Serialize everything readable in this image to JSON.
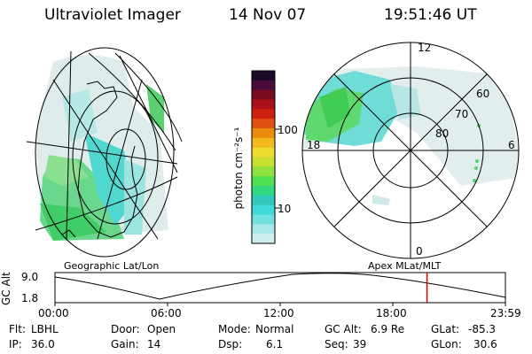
{
  "header": {
    "instrument": "Ultraviolet Imager",
    "date": "14 Nov 07",
    "time": "19:51:46 UT"
  },
  "left_map": {
    "caption": "Geographic Lat/Lon"
  },
  "right_map": {
    "caption": "Apex MLat/MLT",
    "mlt_labels": {
      "top": "12",
      "left": "18",
      "right": "6",
      "bottom": "0"
    },
    "lat_labels": [
      "60",
      "70",
      "80"
    ]
  },
  "colorbar": {
    "label": "photon cm⁻²s⁻¹",
    "ticks": [
      "100",
      "10"
    ],
    "colors": [
      "#1a0a2a",
      "#4a0a3a",
      "#7a0a1e",
      "#a8101a",
      "#cc2010",
      "#e05010",
      "#ec8a10",
      "#f2b820",
      "#ecdc30",
      "#c8e030",
      "#90e040",
      "#50e050",
      "#30d880",
      "#30c8b8",
      "#40d8d8",
      "#70e0e0",
      "#a8e8e8",
      "#d0eeee"
    ]
  },
  "timeline": {
    "y_label": "GC Alt",
    "y_ticks": [
      "9.0",
      "1.8"
    ],
    "x_ticks": [
      "00:00",
      "06:00",
      "12:00",
      "18:00",
      "23:59"
    ],
    "current_fraction": 0.826
  },
  "status": {
    "row1": [
      {
        "key": "Flt:",
        "value": "LBHL"
      },
      {
        "key": "Door:",
        "value": "Open"
      },
      {
        "key": "Mode:",
        "value": "Normal"
      },
      {
        "key": "GC Alt:",
        "value": "6.9 Re"
      },
      {
        "key": "GLat:",
        "value": "-85.3"
      }
    ],
    "row2": [
      {
        "key": "IP:",
        "value": "36.0"
      },
      {
        "key": "Gain:",
        "value": "14"
      },
      {
        "key": "Dsp:",
        "value": "6.1"
      },
      {
        "key": "Seq:",
        "value": "39"
      },
      {
        "key": "GLon:",
        "value": "30.6"
      }
    ]
  }
}
